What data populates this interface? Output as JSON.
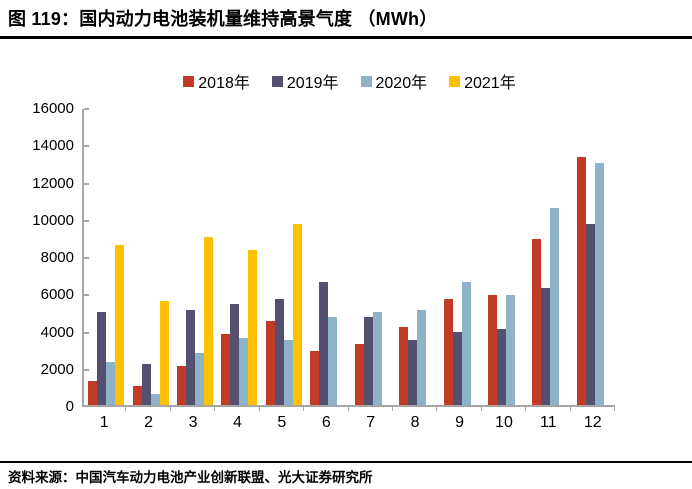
{
  "header": {
    "title": "图 119：国内动力电池装机量维持高景气度 （MWh）"
  },
  "footer": {
    "source": "资料来源：中国汽车动力电池产业创新联盟、光大证券研究所"
  },
  "chart_data": {
    "type": "bar",
    "title": "国内动力电池装机量维持高景气度（MWh）",
    "categories": [
      "1",
      "2",
      "3",
      "4",
      "5",
      "6",
      "7",
      "8",
      "9",
      "10",
      "11",
      "12"
    ],
    "series": [
      {
        "name": "2018年",
        "color": "#C13B26",
        "values": [
          1300,
          1000,
          2100,
          3800,
          4500,
          2900,
          3300,
          4200,
          5700,
          5900,
          8900,
          13300
        ]
      },
      {
        "name": "2019年",
        "color": "#545170",
        "values": [
          5000,
          2200,
          5100,
          5400,
          5700,
          6600,
          4700,
          3500,
          3900,
          4100,
          6300,
          9700
        ]
      },
      {
        "name": "2020年",
        "color": "#8EB3C8",
        "values": [
          2300,
          600,
          2800,
          3600,
          3500,
          4700,
          5000,
          5100,
          6600,
          5900,
          10600,
          13000
        ]
      },
      {
        "name": "2021年",
        "color": "#FFC000",
        "values": [
          8600,
          5600,
          9000,
          8300,
          9700,
          null,
          null,
          null,
          null,
          null,
          null,
          null
        ]
      }
    ],
    "xlabel": "",
    "ylabel": "",
    "ylim": [
      0,
      16000
    ],
    "yticks": [
      0,
      2000,
      4000,
      6000,
      8000,
      10000,
      12000,
      14000,
      16000
    ],
    "grid": false,
    "legend_position": "top",
    "axis_color": "#A6A6A6"
  }
}
